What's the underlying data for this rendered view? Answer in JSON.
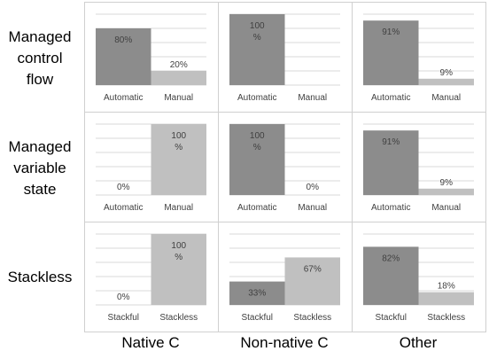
{
  "row_labels": [
    "Managed\ncontrol\nflow",
    "Managed\nvariable\nstate",
    "Stackless"
  ],
  "col_labels": [
    "Native C",
    "Non-native C",
    "Other"
  ],
  "colors": {
    "dark_bar": "#8c8c8c",
    "light_bar": "#c0c0c0",
    "gridline": "#d9d9d9",
    "panel_border": "#d0d0d0"
  },
  "chart_data": [
    {
      "type": "bar",
      "row": "Managed control flow",
      "col": "Native C",
      "categories": [
        "Automatic",
        "Manual"
      ],
      "values": [
        80,
        20
      ],
      "labels": [
        "80%",
        "20%"
      ],
      "ylim": [
        0,
        100
      ]
    },
    {
      "type": "bar",
      "row": "Managed control flow",
      "col": "Non-native C",
      "categories": [
        "Automatic",
        "Manual"
      ],
      "values": [
        100,
        0
      ],
      "labels": [
        "100\n%",
        ""
      ],
      "ylim": [
        0,
        100
      ]
    },
    {
      "type": "bar",
      "row": "Managed control flow",
      "col": "Other",
      "categories": [
        "Automatic",
        "Manual"
      ],
      "values": [
        91,
        9
      ],
      "labels": [
        "91%",
        "9%"
      ],
      "ylim": [
        0,
        100
      ]
    },
    {
      "type": "bar",
      "row": "Managed variable state",
      "col": "Native C",
      "categories": [
        "Automatic",
        "Manual"
      ],
      "values": [
        0,
        100
      ],
      "labels": [
        "0%",
        "100\n%"
      ],
      "ylim": [
        0,
        100
      ]
    },
    {
      "type": "bar",
      "row": "Managed variable state",
      "col": "Non-native C",
      "categories": [
        "Automatic",
        "Manual"
      ],
      "values": [
        100,
        0
      ],
      "labels": [
        "100\n%",
        "0%"
      ],
      "ylim": [
        0,
        100
      ]
    },
    {
      "type": "bar",
      "row": "Managed variable state",
      "col": "Other",
      "categories": [
        "Automatic",
        "Manual"
      ],
      "values": [
        91,
        9
      ],
      "labels": [
        "91%",
        "9%"
      ],
      "ylim": [
        0,
        100
      ]
    },
    {
      "type": "bar",
      "row": "Stackless",
      "col": "Native C",
      "categories": [
        "Stackful",
        "Stackless"
      ],
      "values": [
        0,
        100
      ],
      "labels": [
        "0%",
        "100\n%"
      ],
      "ylim": [
        0,
        100
      ]
    },
    {
      "type": "bar",
      "row": "Stackless",
      "col": "Non-native C",
      "categories": [
        "Stackful",
        "Stackless"
      ],
      "values": [
        33,
        67
      ],
      "labels": [
        "33%",
        "67%"
      ],
      "ylim": [
        0,
        100
      ]
    },
    {
      "type": "bar",
      "row": "Stackless",
      "col": "Other",
      "categories": [
        "Stackful",
        "Stackless"
      ],
      "values": [
        82,
        18
      ],
      "labels": [
        "82%",
        "18%"
      ],
      "ylim": [
        0,
        100
      ]
    }
  ]
}
